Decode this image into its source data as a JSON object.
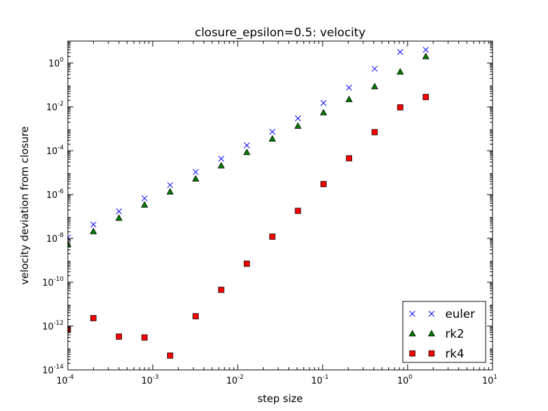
{
  "chart_data": {
    "type": "scatter",
    "title": "closure_epsilon=0.5: velocity",
    "xlabel": "step size",
    "ylabel": "velocity deviation from closure",
    "xscale": "log",
    "yscale": "log",
    "xlim": [
      0.0001,
      10
    ],
    "ylim": [
      1e-14,
      10
    ],
    "x_ticks": [
      {
        "base": "10",
        "exp": "-4",
        "value": 0.0001
      },
      {
        "base": "10",
        "exp": "-3",
        "value": 0.001
      },
      {
        "base": "10",
        "exp": "-2",
        "value": 0.01
      },
      {
        "base": "10",
        "exp": "-1",
        "value": 0.1
      },
      {
        "base": "10",
        "exp": "0",
        "value": 1
      },
      {
        "base": "10",
        "exp": "1",
        "value": 10
      }
    ],
    "y_ticks": [
      {
        "base": "10",
        "exp": "-14",
        "value": 1e-14
      },
      {
        "base": "10",
        "exp": "-12",
        "value": 1e-12
      },
      {
        "base": "10",
        "exp": "-10",
        "value": 1e-10
      },
      {
        "base": "10",
        "exp": "-8",
        "value": 1e-08
      },
      {
        "base": "10",
        "exp": "-6",
        "value": 1e-06
      },
      {
        "base": "10",
        "exp": "-4",
        "value": 0.0001
      },
      {
        "base": "10",
        "exp": "-2",
        "value": 0.01
      },
      {
        "base": "10",
        "exp": "0",
        "value": 1
      }
    ],
    "grid": false,
    "legend_position": "bottom-right",
    "series": [
      {
        "name": "euler",
        "marker": "x",
        "color": "#0000ff",
        "x": [
          0.0001,
          0.0002,
          0.0004,
          0.0008,
          0.0016,
          0.0032,
          0.0064,
          0.0128,
          0.0256,
          0.0512,
          0.1024,
          0.2048,
          0.4096,
          0.8192,
          1.6384
        ],
        "y": [
          1.1e-08,
          4.3e-08,
          1.7e-07,
          6.7e-07,
          2.7e-06,
          1.07e-05,
          4.3e-05,
          0.000175,
          0.00073,
          0.003,
          0.015,
          0.075,
          0.55,
          3.2,
          4.0
        ]
      },
      {
        "name": "rk2",
        "marker": "triangle",
        "color": "#007f00",
        "x": [
          0.0001,
          0.0002,
          0.0004,
          0.0008,
          0.0016,
          0.0032,
          0.0064,
          0.0128,
          0.0256,
          0.0512,
          0.1024,
          0.2048,
          0.4096,
          0.8192,
          1.6384
        ],
        "y": [
          5.3e-09,
          2.1e-08,
          8.5e-08,
          3.4e-07,
          1.35e-06,
          5.3e-06,
          2.1e-05,
          8.5e-05,
          0.00035,
          0.00135,
          0.0055,
          0.022,
          0.085,
          0.4,
          2.0
        ]
      },
      {
        "name": "rk4",
        "marker": "square",
        "color": "#ff0000",
        "x": [
          0.0001,
          0.0002,
          0.0004,
          0.0008,
          0.0016,
          0.0032,
          0.0064,
          0.0128,
          0.0256,
          0.0512,
          0.1024,
          0.2048,
          0.4096,
          0.8192,
          1.6384
        ],
        "y": [
          7e-13,
          2.3e-12,
          3.3e-13,
          3e-13,
          4.5e-14,
          2.8e-12,
          4.5e-11,
          7e-10,
          1.2e-08,
          1.8e-07,
          3e-06,
          4.5e-05,
          0.0007,
          0.0095,
          0.028
        ]
      }
    ]
  }
}
